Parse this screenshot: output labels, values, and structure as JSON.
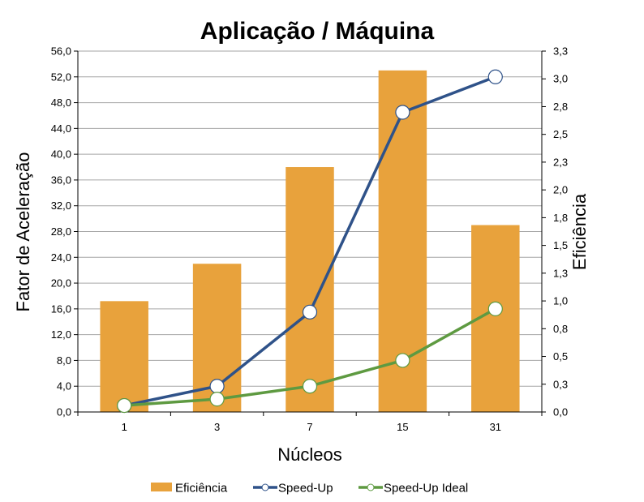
{
  "chart_data": {
    "type": "bar+line",
    "title": "Aplicação / Máquina",
    "xlabel": "Núcleos",
    "ylabel": "Fator de Aceleração",
    "y2label": "Eficiência",
    "categories": [
      "1",
      "3",
      "7",
      "15",
      "31"
    ],
    "ylim": [
      0,
      56
    ],
    "y_ticks": [
      "0,0",
      "4,0",
      "8,0",
      "12,0",
      "16,0",
      "20,0",
      "24,0",
      "28,0",
      "32,0",
      "36,0",
      "40,0",
      "44,0",
      "48,0",
      "52,0",
      "56,0"
    ],
    "y2_ticks": [
      "0,0",
      "0,3",
      "0,5",
      "0,8",
      "1,0",
      "1,3",
      "1,5",
      "1,8",
      "2,0",
      "2,3",
      "2,5",
      "2,8",
      "3,0",
      "3,3"
    ],
    "grid": true,
    "legend_position": "bottom",
    "series": [
      {
        "name": "Eficiência",
        "kind": "bar",
        "axis": "left",
        "color": "#E8A23C",
        "values": [
          17.2,
          23.0,
          38.0,
          53.0,
          29.0
        ]
      },
      {
        "name": "Speed-Up",
        "kind": "line",
        "axis": "left",
        "color": "#2F5289",
        "values": [
          1.0,
          4.0,
          15.5,
          46.5,
          52.0
        ]
      },
      {
        "name": "Speed-Up Ideal",
        "kind": "line",
        "axis": "left",
        "color": "#5E9A41",
        "values": [
          1.0,
          2.0,
          4.0,
          8.0,
          16.0
        ]
      }
    ]
  }
}
